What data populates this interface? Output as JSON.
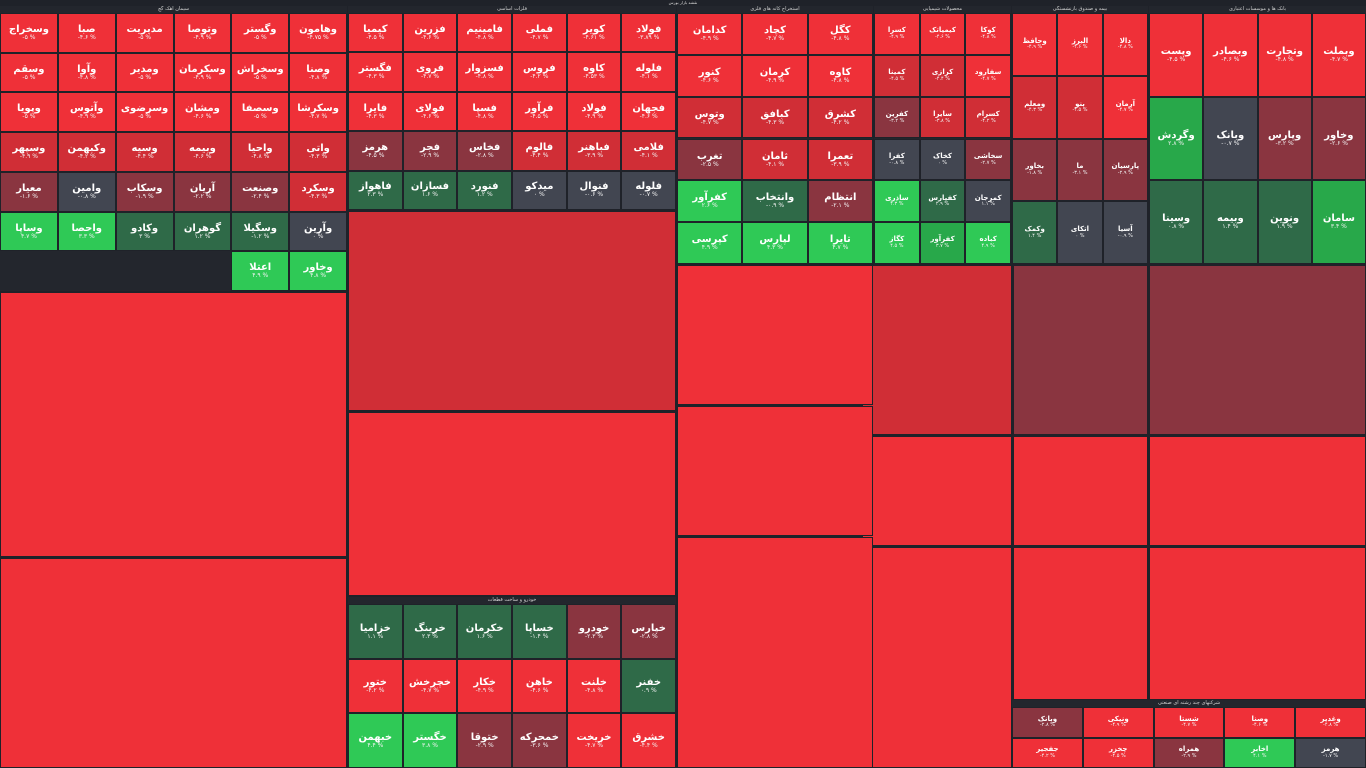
{
  "title": "نقشه بازار بورس",
  "colors": {
    "strong_red": "#ef3038",
    "red": "#d02e36",
    "dark_red": "#8a3540",
    "gray": "#424651",
    "dark_green": "#2f6a48",
    "green": "#28a84a",
    "bright_green": "#2fc956"
  },
  "sectors": [
    {
      "title": "سیمان آهک گچ",
      "tiles": [
        {
          "sym": "وهامون",
          "chg": "-۴.۷۵ %",
          "c": "strong_red"
        },
        {
          "sym": "وگستر",
          "chg": "-۵ %",
          "c": "strong_red"
        },
        {
          "sym": "وتوصا",
          "chg": "-۴.۹ %",
          "c": "strong_red"
        },
        {
          "sym": "مدیریت",
          "chg": "-۵ %",
          "c": "strong_red"
        },
        {
          "sym": "صبا",
          "chg": "-۴.۶ %",
          "c": "strong_red"
        },
        {
          "sym": "وسخراج",
          "chg": "-۵ %",
          "c": "strong_red"
        },
        {
          "sym": "وصنا",
          "chg": "-۴.۸ %",
          "c": "strong_red"
        },
        {
          "sym": "وسخراش",
          "chg": "-۵ %",
          "c": "strong_red"
        },
        {
          "sym": "وسکرمان",
          "chg": "-۴.۹ %",
          "c": "strong_red"
        },
        {
          "sym": "ومدیر",
          "chg": "-۵ %",
          "c": "strong_red"
        },
        {
          "sym": "وآوا",
          "chg": "-۴.۸ %",
          "c": "strong_red"
        },
        {
          "sym": "وسقم",
          "chg": "-۵ %",
          "c": "strong_red"
        },
        {
          "sym": "وسکرشا",
          "chg": "-۴.۷ %",
          "c": "strong_red"
        },
        {
          "sym": "وسصفا",
          "chg": "-۵ %",
          "c": "strong_red"
        },
        {
          "sym": "ومشان",
          "chg": "-۴.۶ %",
          "c": "strong_red"
        },
        {
          "sym": "وسرضوی",
          "chg": "-۵ %",
          "c": "strong_red"
        },
        {
          "sym": "وآتوس",
          "chg": "-۴.۹ %",
          "c": "strong_red"
        },
        {
          "sym": "وپویا",
          "chg": "-۵ %",
          "c": "strong_red"
        },
        {
          "sym": "واتی",
          "chg": "-۴.۳ %",
          "c": "red"
        },
        {
          "sym": "واحیا",
          "chg": "-۴.۸ %",
          "c": "red"
        },
        {
          "sym": "وبیمه",
          "chg": "-۴.۶ %",
          "c": "red"
        },
        {
          "sym": "وسیه",
          "chg": "-۴.۴ %",
          "c": "red"
        },
        {
          "sym": "وکبهمن",
          "chg": "-۴.۲ %",
          "c": "red"
        },
        {
          "sym": "وسپهر",
          "chg": "-۴.۹ %",
          "c": "red"
        },
        {
          "sym": "وسکرد",
          "chg": "-۴.۳ %",
          "c": "red"
        },
        {
          "sym": "وصنعت",
          "chg": "-۲.۴ %",
          "c": "dark_red"
        },
        {
          "sym": "آریان",
          "chg": "-۲.۲ %",
          "c": "dark_red"
        },
        {
          "sym": "وسکاب",
          "chg": "-۱.۹ %",
          "c": "dark_red"
        },
        {
          "sym": "وامین",
          "chg": "-۰.۸ %",
          "c": "gray"
        },
        {
          "sym": "معیار",
          "chg": "-۱.۶ %",
          "c": "dark_red"
        },
        {
          "sym": "وآرین",
          "chg": "۰ %",
          "c": "gray"
        },
        {
          "sym": "وسگیلا",
          "chg": "-۱.۲ %",
          "c": "dark_green"
        },
        {
          "sym": "گوهران",
          "chg": "۱.۲ %",
          "c": "dark_green"
        },
        {
          "sym": "وکادو",
          "chg": "۳ %",
          "c": "dark_green"
        },
        {
          "sym": "واحصا",
          "chg": "۳.۳ %",
          "c": "bright_green"
        },
        {
          "sym": "وساپا",
          "chg": "۴.۷ %",
          "c": "bright_green"
        },
        {
          "sym": "وخاور",
          "chg": "۴.۸ %",
          "c": "bright_green"
        },
        {
          "sym": "اعتلا",
          "chg": "۴.۹ %",
          "c": "bright_green"
        }
      ]
    },
    {
      "title": "فلزات اساسی",
      "tiles": [
        {
          "sym": "فولاد",
          "chg": "-۳.۸۹ %",
          "c": "strong_red"
        },
        {
          "sym": "کویر",
          "chg": "-۴.۶۱ %",
          "c": "strong_red"
        },
        {
          "sym": "فملی",
          "chg": "-۴.۷ %",
          "c": "strong_red"
        },
        {
          "sym": "فامینیم",
          "chg": "-۴.۸ %",
          "c": "strong_red"
        },
        {
          "sym": "فزرین",
          "chg": "-۴.۶ %",
          "c": "strong_red"
        },
        {
          "sym": "کیمیا",
          "chg": "-۴.۵ %",
          "c": "strong_red"
        },
        {
          "sym": "فلوله",
          "chg": "-۴.۱ %",
          "c": "strong_red"
        },
        {
          "sym": "کاوه",
          "chg": "-۴.۵۳ %",
          "c": "strong_red"
        },
        {
          "sym": "فروس",
          "chg": "-۴.۲ %",
          "c": "strong_red"
        },
        {
          "sym": "فسزوار",
          "chg": "-۴.۸ %",
          "c": "strong_red"
        },
        {
          "sym": "فروی",
          "chg": "-۴.۷ %",
          "c": "strong_red"
        },
        {
          "sym": "فگستر",
          "chg": "-۴.۳ %",
          "c": "strong_red"
        },
        {
          "sym": "فجهان",
          "chg": "-۴.۶ %",
          "c": "strong_red"
        },
        {
          "sym": "فولاد",
          "chg": "-۴.۹ %",
          "c": "strong_red"
        },
        {
          "sym": "فرآور",
          "chg": "-۴.۵ %",
          "c": "strong_red"
        },
        {
          "sym": "فسپا",
          "chg": "-۴.۸ %",
          "c": "strong_red"
        },
        {
          "sym": "فولای",
          "chg": "-۴.۶ %",
          "c": "strong_red"
        },
        {
          "sym": "فایرا",
          "chg": "-۴.۳ %",
          "c": "strong_red"
        },
        {
          "sym": "فلامی",
          "chg": "-۴.۱ %",
          "c": "red"
        },
        {
          "sym": "فباهنر",
          "chg": "-۳.۹ %",
          "c": "red"
        },
        {
          "sym": "فالوم",
          "chg": "-۴.۴ %",
          "c": "red"
        },
        {
          "sym": "فخاس",
          "chg": "-۲.۸ %",
          "c": "dark_red"
        },
        {
          "sym": "فجر",
          "chg": "-۲.۹ %",
          "c": "dark_red"
        },
        {
          "sym": "هرمز",
          "chg": "-۴.۵ %",
          "c": "dark_red"
        },
        {
          "sym": "فلوله",
          "chg": "-۰.۷ %",
          "c": "gray"
        },
        {
          "sym": "فنوال",
          "chg": "-۰.۶ %",
          "c": "gray"
        },
        {
          "sym": "میدکو",
          "chg": "۰ %",
          "c": "gray"
        },
        {
          "sym": "فنورد",
          "chg": "۱.۲ %",
          "c": "dark_green"
        },
        {
          "sym": "فسازان",
          "chg": "۱.۶ %",
          "c": "dark_green"
        },
        {
          "sym": "فاهواز",
          "chg": "۲.۳ %",
          "c": "dark_green"
        }
      ]
    },
    {
      "title": "استخراج کانه های فلزی",
      "tiles": [
        {
          "sym": "کگل",
          "chg": "-۴.۸ %",
          "c": "strong_red"
        },
        {
          "sym": "کچاد",
          "chg": "-۴.۷ %",
          "c": "strong_red"
        },
        {
          "sym": "کدامان",
          "chg": "-۴.۹ %",
          "c": "strong_red"
        },
        {
          "sym": "کاوه",
          "chg": "-۴.۸ %",
          "c": "strong_red"
        },
        {
          "sym": "کرمان",
          "chg": "-۴.۹ %",
          "c": "strong_red"
        },
        {
          "sym": "کنور",
          "chg": "-۴.۶ %",
          "c": "strong_red"
        },
        {
          "sym": "کشرق",
          "chg": "-۴.۲ %",
          "c": "red"
        },
        {
          "sym": "کبافق",
          "chg": "-۴.۳ %",
          "c": "red"
        },
        {
          "sym": "وتوس",
          "chg": "-۴.۷ %",
          "c": "red"
        },
        {
          "sym": "تعمرا",
          "chg": "-۳.۹ %",
          "c": "red"
        },
        {
          "sym": "ثامان",
          "chg": "-۴.۱ %",
          "c": "red"
        },
        {
          "sym": "تغرب",
          "chg": "-۲.۵ %",
          "c": "dark_red"
        },
        {
          "sym": "انتظام",
          "chg": "-۲.۱ %",
          "c": "dark_red"
        },
        {
          "sym": "وانتخاب",
          "chg": "-۰.۹ %",
          "c": "dark_green"
        },
        {
          "sym": "کفرآور",
          "chg": "۲.۶ %",
          "c": "bright_green"
        },
        {
          "sym": "تایرا",
          "chg": "۴.۷ %",
          "c": "bright_green"
        },
        {
          "sym": "لپارس",
          "chg": "۴.۳ %",
          "c": "bright_green"
        },
        {
          "sym": "کپرسی",
          "chg": "۴.۹ %",
          "c": "bright_green"
        }
      ]
    },
    {
      "title": "محصولات شیمیایی",
      "tiles": [
        {
          "sym": "کوکا",
          "chg": "-۴.۸ %",
          "c": "strong_red"
        },
        {
          "sym": "کیمیاتک",
          "chg": "-۴.۶ %",
          "c": "strong_red"
        },
        {
          "sym": "کسرا",
          "chg": "-۴.۹ %",
          "c": "strong_red"
        },
        {
          "sym": "سفارود",
          "chg": "-۴.۷ %",
          "c": "strong_red"
        },
        {
          "sym": "کرازی",
          "chg": "-۴.۴ %",
          "c": "red"
        },
        {
          "sym": "کمینا",
          "chg": "-۴.۵ %",
          "c": "red"
        },
        {
          "sym": "کسرام",
          "chg": "-۴.۲ %",
          "c": "red"
        },
        {
          "sym": "سایرا",
          "chg": "-۳.۸ %",
          "c": "red"
        },
        {
          "sym": "کفرین",
          "chg": "-۳.۲ %",
          "c": "dark_red"
        },
        {
          "sym": "سخاشی",
          "chg": "-۲.۷ %",
          "c": "dark_red"
        },
        {
          "sym": "کخاک",
          "chg": "۰ %",
          "c": "gray"
        },
        {
          "sym": "کفرا",
          "chg": "-۰.۸ %",
          "c": "gray"
        },
        {
          "sym": "کمرجان",
          "chg": "۱.۱ %",
          "c": "gray"
        },
        {
          "sym": "کفپارس",
          "chg": "۲.۹ %",
          "c": "dark_green"
        },
        {
          "sym": "ساذری",
          "chg": "۴.۳ %",
          "c": "bright_green"
        },
        {
          "sym": "کباده",
          "chg": "۴.۹ %",
          "c": "bright_green"
        },
        {
          "sym": "کفرآور",
          "chg": "۳.۷ %",
          "c": "green"
        },
        {
          "sym": "کگاز",
          "chg": "۴.۵ %",
          "c": "bright_green"
        }
      ]
    },
    {
      "title": "بیمه و صندوق بازنشستگی",
      "tiles": [
        {
          "sym": "دالا",
          "chg": "-۴.۸ %",
          "c": "strong_red"
        },
        {
          "sym": "البرز",
          "chg": "-۴.۶ %",
          "c": "strong_red"
        },
        {
          "sym": "وحافظ",
          "chg": "-۴.۹ %",
          "c": "strong_red"
        },
        {
          "sym": "آرمان",
          "chg": "-۴.۷ %",
          "c": "strong_red"
        },
        {
          "sym": "بنو",
          "chg": "-۴.۵ %",
          "c": "red"
        },
        {
          "sym": "ومعلم",
          "chg": "-۴.۳ %",
          "c": "red"
        },
        {
          "sym": "پارسیان",
          "chg": "-۲.۹ %",
          "c": "dark_red"
        },
        {
          "sym": "ما",
          "chg": "-۳.۱ %",
          "c": "dark_red"
        },
        {
          "sym": "بخاور",
          "chg": "-۱.۸ %",
          "c": "dark_red"
        },
        {
          "sym": "آسیا",
          "chg": "-۰.۹ %",
          "c": "gray"
        },
        {
          "sym": "اتکای",
          "chg": "۰ %",
          "c": "gray"
        },
        {
          "sym": "وکمک",
          "chg": "۱.۴ %",
          "c": "dark_green"
        }
      ]
    },
    {
      "title": "بانک ها و موسسات اعتباری",
      "tiles": [
        {
          "sym": "وبملت",
          "chg": "-۴.۷ %",
          "c": "strong_red"
        },
        {
          "sym": "وتجارت",
          "chg": "-۴.۸ %",
          "c": "strong_red"
        },
        {
          "sym": "وبصادر",
          "chg": "-۴.۶ %",
          "c": "strong_red"
        },
        {
          "sym": "وپست",
          "chg": "-۴.۵ %",
          "c": "strong_red"
        },
        {
          "sym": "وخاور",
          "chg": "-۲.۶ %",
          "c": "dark_red"
        },
        {
          "sym": "وپارس",
          "chg": "-۳.۲ %",
          "c": "dark_red"
        },
        {
          "sym": "وبانک",
          "chg": "-۰.۷ %",
          "c": "gray"
        },
        {
          "sym": "وگردش",
          "chg": "۲.۸ %",
          "c": "green"
        },
        {
          "sym": "سامان",
          "chg": "۳.۴ %",
          "c": "green"
        },
        {
          "sym": "ونوین",
          "chg": "۱.۹ %",
          "c": "dark_green"
        },
        {
          "sym": "وبیمه",
          "chg": "۱.۴ %",
          "c": "dark_green"
        },
        {
          "sym": "وسینا",
          "chg": "۰.۸ %",
          "c": "dark_green"
        }
      ]
    },
    {
      "title": "خودرو و ساخت قطعات",
      "tiles": [
        {
          "sym": "خپارس",
          "chg": "-۲.۸ %",
          "c": "dark_red"
        },
        {
          "sym": "خودرو",
          "chg": "-۲.۳ %",
          "c": "dark_red"
        },
        {
          "sym": "خساپا",
          "chg": "-۱.۴ %",
          "c": "dark_green"
        },
        {
          "sym": "خکرمان",
          "chg": "۱.۶ %",
          "c": "dark_green"
        },
        {
          "sym": "خرینگ",
          "chg": "۲.۳ %",
          "c": "dark_green"
        },
        {
          "sym": "خزامیا",
          "chg": "۱.۱ %",
          "c": "dark_green"
        },
        {
          "sym": "خفنر",
          "chg": "۰.۹ %",
          "c": "dark_green"
        },
        {
          "sym": "خلنت",
          "chg": "-۴.۸ %",
          "c": "strong_red"
        },
        {
          "sym": "خاهن",
          "chg": "-۴.۶ %",
          "c": "strong_red"
        },
        {
          "sym": "خکار",
          "chg": "-۴.۹ %",
          "c": "strong_red"
        },
        {
          "sym": "خچرخش",
          "chg": "-۴.۷ %",
          "c": "strong_red"
        },
        {
          "sym": "ختور",
          "chg": "-۴.۲ %",
          "c": "strong_red"
        },
        {
          "sym": "خشرق",
          "chg": "-۴.۴ %",
          "c": "strong_red"
        },
        {
          "sym": "خریخت",
          "chg": "-۴.۷ %",
          "c": "strong_red"
        },
        {
          "sym": "خمحرکه",
          "chg": "-۳.۶ %",
          "c": "dark_red"
        },
        {
          "sym": "ختوقا",
          "chg": "-۲.۹ %",
          "c": "dark_red"
        },
        {
          "sym": "خگستر",
          "chg": "۳.۸ %",
          "c": "bright_green"
        },
        {
          "sym": "خبهمن",
          "chg": "۴.۴ %",
          "c": "bright_green"
        }
      ]
    },
    {
      "title": "شرکتهای چند رشته ای صنعتی",
      "tiles": [
        {
          "sym": "وغدیر",
          "chg": "-۴.۸ %",
          "c": "strong_red"
        },
        {
          "sym": "وصنا",
          "chg": "-۴.۶ %",
          "c": "strong_red"
        },
        {
          "sym": "شستا",
          "chg": "-۴.۷ %",
          "c": "strong_red"
        },
        {
          "sym": "ونیکی",
          "chg": "-۴.۹ %",
          "c": "strong_red"
        },
        {
          "sym": "وبانک",
          "chg": "-۲.۸ %",
          "c": "dark_red"
        },
        {
          "sym": "هرمز",
          "chg": "-۱.۷ %",
          "c": "gray"
        },
        {
          "sym": "اخابر",
          "chg": "۴.۱ %",
          "c": "bright_green"
        },
        {
          "sym": "همراه",
          "chg": "-۲.۹ %",
          "c": "dark_red"
        },
        {
          "sym": "چخزر",
          "chg": "-۴.۵ %",
          "c": "strong_red"
        },
        {
          "sym": "جفجیر",
          "chg": "-۴.۲ %",
          "c": "strong_red"
        }
      ]
    }
  ]
}
